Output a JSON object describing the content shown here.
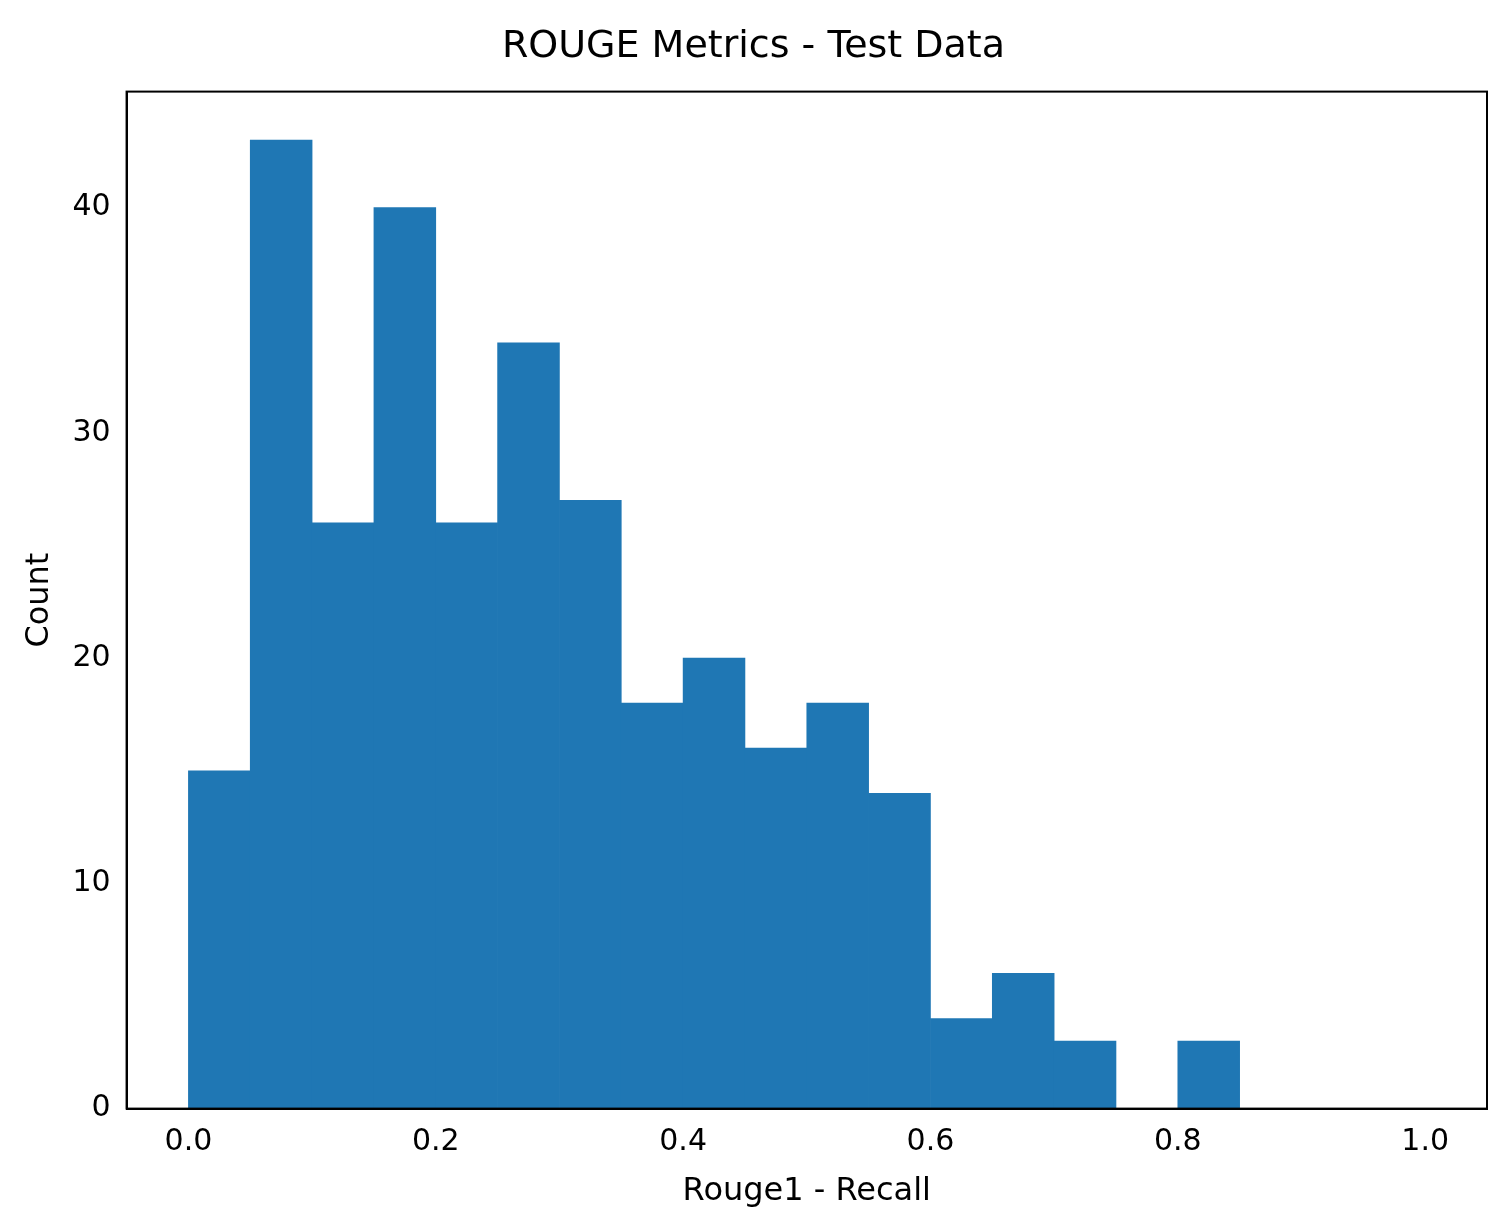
{
  "chart_data": {
    "type": "histogram",
    "title": "ROUGE Metrics - Test Data",
    "x_label": "Rouge1 - Recall",
    "y_label": "Count",
    "bins": [
      0.0,
      0.05,
      0.1,
      0.15,
      0.2,
      0.25,
      0.3,
      0.35,
      0.4,
      0.45,
      0.5,
      0.55,
      0.6,
      0.65,
      0.7,
      0.75,
      0.8,
      0.85,
      0.9,
      0.95,
      1.0
    ],
    "values": [
      15,
      43,
      26,
      40,
      26,
      34,
      27,
      18,
      20,
      16,
      18,
      14,
      4,
      6,
      3,
      0,
      3,
      0,
      0,
      0
    ],
    "color": "#1f77b4",
    "xlim": [
      -0.05,
      1.05
    ],
    "xticks": [
      {
        "value": 0,
        "label": "0.0"
      },
      0.2,
      0.4,
      0.6,
      0.8,
      {
        "value": 1,
        "label": "1.0"
      }
    ],
    "ylim": [
      0,
      45.15
    ],
    "yticks": [
      0,
      10,
      20,
      30,
      40
    ],
    "grid": false
  }
}
